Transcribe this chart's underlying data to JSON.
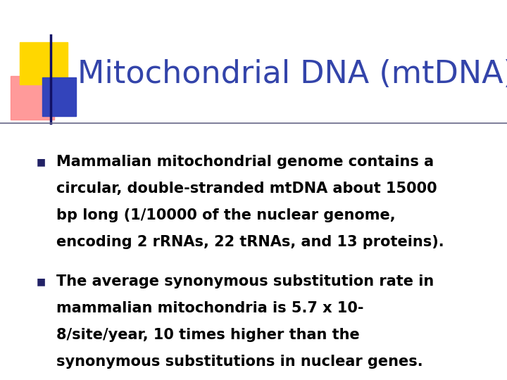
{
  "title": "Mitochondrial DNA (mtDNA)",
  "title_color": "#3344AA",
  "title_fontsize": 32,
  "background_color": "#FFFFFF",
  "bullet1_lines": [
    "Mammalian mitochondrial genome contains a",
    "circular, double-stranded mtDNA about 15000",
    "bp long (1/10000 of the nuclear genome,",
    "encoding 2 rRNAs, 22 tRNAs, and 13 proteins)."
  ],
  "bullet2_lines": [
    "The average synonymous substitution rate in",
    "mammalian mitochondria is 5.7 x 10-",
    "8/site/year, 10 times higher than the",
    "synonymous substitutions in nuclear genes."
  ],
  "bullet_fontsize": 15,
  "bullet_marker_color": "#222266",
  "text_color": "#000000",
  "line_color": "#666688",
  "decoration_yellow": "#FFD700",
  "decoration_red": "#FF8888",
  "decoration_blue": "#3344BB",
  "decoration_blue_dark": "#111166"
}
